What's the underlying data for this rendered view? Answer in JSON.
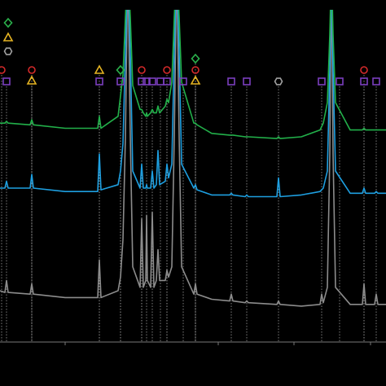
{
  "chart_data": {
    "type": "line",
    "xlim": [
      0,
      474
    ],
    "ylim": [
      0,
      100
    ],
    "xticks": [
      80,
      268,
      361,
      455
    ],
    "x": [
      0,
      6,
      8,
      10,
      37,
      39,
      41,
      80,
      120,
      122,
      124,
      145,
      148,
      151,
      154,
      157,
      160,
      163,
      172,
      174,
      176,
      179,
      180,
      181,
      185,
      187,
      189,
      192,
      194,
      196,
      203,
      205,
      207,
      211,
      214,
      217,
      220,
      223,
      238,
      240,
      242,
      260,
      282,
      284,
      286,
      301,
      303,
      305,
      340,
      342,
      344,
      370,
      393,
      395,
      397,
      402,
      405,
      407,
      409,
      412,
      430,
      445,
      447,
      449,
      460,
      462,
      464,
      474
    ],
    "series": [
      {
        "color": "#8c8c8c",
        "values": [
          15,
          14.5,
          18,
          14.5,
          14,
          17,
          14,
          13,
          13,
          24,
          13,
          15,
          19,
          30,
          60,
          110,
          60,
          22,
          16,
          36,
          16,
          18,
          37,
          18,
          16,
          38,
          16,
          18,
          27,
          18,
          18,
          21,
          19,
          22,
          60,
          110,
          60,
          22,
          14,
          17,
          14,
          12.5,
          12,
          14,
          12,
          11.5,
          12,
          11.5,
          11,
          12,
          11,
          10.5,
          11,
          14,
          11.5,
          16,
          55,
          110,
          55,
          16,
          11,
          11,
          17,
          11,
          11,
          14,
          11,
          11
        ]
      },
      {
        "color": "#1e9fe0",
        "values": [
          45,
          45,
          47,
          45,
          45,
          49,
          45,
          44,
          44,
          55,
          44.5,
          46,
          50,
          58,
          85,
          110,
          85,
          50,
          45,
          52,
          45,
          45,
          46,
          45,
          45,
          50,
          45,
          46,
          56,
          46,
          47,
          52,
          48,
          52,
          85,
          110,
          85,
          52,
          45,
          46,
          44.5,
          43,
          43,
          43.5,
          43,
          42.5,
          43,
          42.5,
          42.5,
          48,
          42.5,
          43,
          44,
          44.5,
          45,
          50,
          80,
          110,
          80,
          50,
          43.5,
          43.5,
          45,
          43.5,
          43.5,
          44,
          43.5,
          43.5
        ]
      },
      {
        "color": "#22b04a",
        "values": [
          64,
          64,
          64.5,
          64,
          63.5,
          65,
          63.5,
          62.5,
          62.5,
          66,
          62.5,
          66,
          72,
          78,
          95,
          110,
          95,
          75,
          68,
          68,
          67,
          66,
          67,
          66,
          67,
          68,
          67,
          67,
          69,
          67,
          69,
          71,
          70,
          76,
          95,
          110,
          95,
          76,
          64,
          64,
          63.5,
          61,
          60.5,
          60.5,
          60.5,
          60,
          60,
          60,
          59.5,
          60,
          59.5,
          60,
          62,
          63,
          64,
          70,
          90,
          110,
          90,
          70,
          62,
          62,
          62.5,
          62,
          62,
          62,
          62,
          62
        ]
      }
    ],
    "markers": [
      {
        "shape": "square",
        "color": "#7b3fbf",
        "x": [
          8,
          122,
          148,
          174,
          180,
          187,
          197,
          205,
          225,
          284,
          303,
          395,
          417,
          447,
          462
        ]
      },
      {
        "shape": "circle",
        "color": "#d42a2a",
        "x": [
          2,
          39,
          174,
          205,
          240,
          447
        ]
      },
      {
        "shape": "triangle",
        "color": "#e6b422",
        "x": [
          39,
          240
        ]
      },
      {
        "shape": "triangle",
        "color": "#e6b422",
        "x": [
          122
        ]
      },
      {
        "shape": "diamond",
        "color": "#2bb24c",
        "x": [
          148
        ]
      },
      {
        "shape": "diamond",
        "color": "#2bb24c",
        "x": [
          240
        ]
      },
      {
        "shape": "triangle",
        "color": "#e6b422",
        "x": [
          10
        ]
      },
      {
        "shape": "diamond",
        "color": "#2bb24c",
        "x": [
          10
        ]
      },
      {
        "shape": "hexagon",
        "color": "#a0a0a0",
        "x": [
          342
        ]
      },
      {
        "shape": "hexagon",
        "color": "#a0a0a0",
        "x": [
          10
        ]
      }
    ]
  }
}
